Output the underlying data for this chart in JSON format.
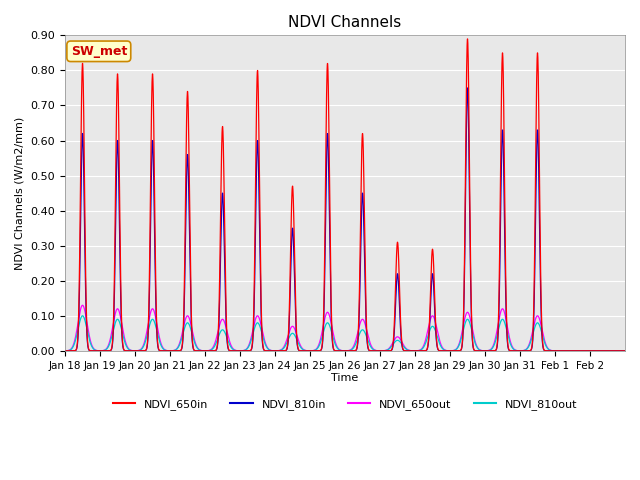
{
  "title": "NDVI Channels",
  "ylabel": "NDVI Channels (W/m2/mm)",
  "xlabel": "Time",
  "ylim": [
    0.0,
    0.9
  ],
  "yticks": [
    0.0,
    0.1,
    0.2,
    0.3,
    0.4,
    0.5,
    0.6,
    0.7,
    0.8,
    0.9
  ],
  "colors": {
    "NDVI_650in": "#ff0000",
    "NDVI_810in": "#0000cc",
    "NDVI_650out": "#ff00ff",
    "NDVI_810out": "#00cccc"
  },
  "annotation_text": "SW_met",
  "annotation_color": "#cc0000",
  "annotation_bg": "#ffffcc",
  "annotation_border": "#cc8800",
  "background_color": "#e8e8e8",
  "tick_dates": [
    "Jan 18",
    "Jan 19",
    "Jan 20",
    "Jan 21",
    "Jan 22",
    "Jan 23",
    "Jan 24",
    "Jan 25",
    "Jan 26",
    "Jan 27",
    "Jan 28",
    "Jan 29",
    "Jan 30",
    "Jan 31",
    "Feb 1",
    "Feb 2"
  ],
  "peak_650in": [
    0.82,
    0.79,
    0.79,
    0.74,
    0.64,
    0.8,
    0.47,
    0.82,
    0.62,
    0.31,
    0.29,
    0.89,
    0.85,
    0.85,
    0.0,
    0.0
  ],
  "peak_810in": [
    0.62,
    0.6,
    0.6,
    0.56,
    0.45,
    0.6,
    0.35,
    0.62,
    0.45,
    0.22,
    0.22,
    0.75,
    0.63,
    0.63,
    0.0,
    0.0
  ],
  "peak_650out": [
    0.13,
    0.12,
    0.12,
    0.1,
    0.09,
    0.1,
    0.07,
    0.11,
    0.09,
    0.04,
    0.1,
    0.11,
    0.12,
    0.1,
    0.0,
    0.0
  ],
  "peak_810out": [
    0.1,
    0.09,
    0.09,
    0.08,
    0.06,
    0.08,
    0.05,
    0.08,
    0.06,
    0.03,
    0.07,
    0.09,
    0.09,
    0.08,
    0.0,
    0.0
  ]
}
